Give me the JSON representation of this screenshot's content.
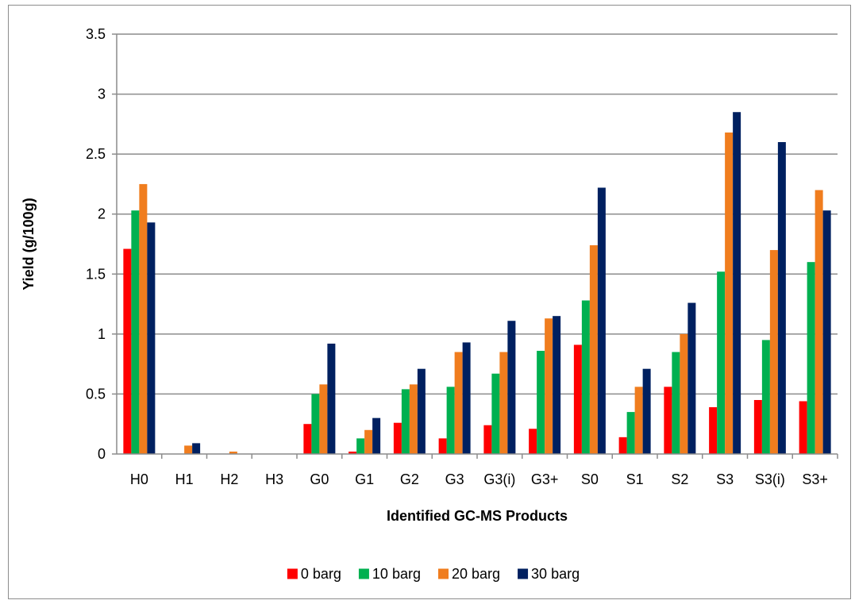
{
  "chart_data": {
    "type": "bar",
    "title": "",
    "xlabel": "Identified GC-MS Products",
    "ylabel": "Yield (g/100g)",
    "ylim": [
      0,
      3.5
    ],
    "yticks": [
      "0",
      "0.5",
      "1",
      "1.5",
      "2",
      "2.5",
      "3",
      "3.5"
    ],
    "grid": "horizontal",
    "legend_position": "bottom",
    "categories": [
      "H0",
      "H1",
      "H2",
      "H3",
      "G0",
      "G1",
      "G2",
      "G3",
      "G3(i)",
      "G3+",
      "S0",
      "S1",
      "S2",
      "S3",
      "S3(i)",
      "S3+"
    ],
    "series": [
      {
        "name": "0 barg",
        "color": "#ff0000",
        "values": [
          1.71,
          0,
          0,
          0,
          0.25,
          0.02,
          0.26,
          0.13,
          0.24,
          0.21,
          0.91,
          0.14,
          0.56,
          0.39,
          0.45,
          0.44
        ]
      },
      {
        "name": "10 barg",
        "color": "#00b050",
        "values": [
          2.03,
          0,
          0,
          0,
          0.5,
          0.13,
          0.54,
          0.56,
          0.67,
          0.86,
          1.28,
          0.35,
          0.85,
          1.52,
          0.95,
          1.6
        ]
      },
      {
        "name": "20 barg",
        "color": "#f07d1e",
        "values": [
          2.25,
          0.07,
          0.02,
          0,
          0.58,
          0.2,
          0.58,
          0.85,
          0.85,
          1.13,
          1.74,
          0.56,
          1.0,
          2.68,
          1.7,
          2.2
        ]
      },
      {
        "name": "30 barg",
        "color": "#002060",
        "values": [
          1.93,
          0.09,
          0,
          0,
          0.92,
          0.3,
          0.71,
          0.93,
          1.11,
          1.15,
          2.22,
          0.71,
          1.26,
          2.85,
          2.6,
          2.03
        ]
      }
    ]
  }
}
